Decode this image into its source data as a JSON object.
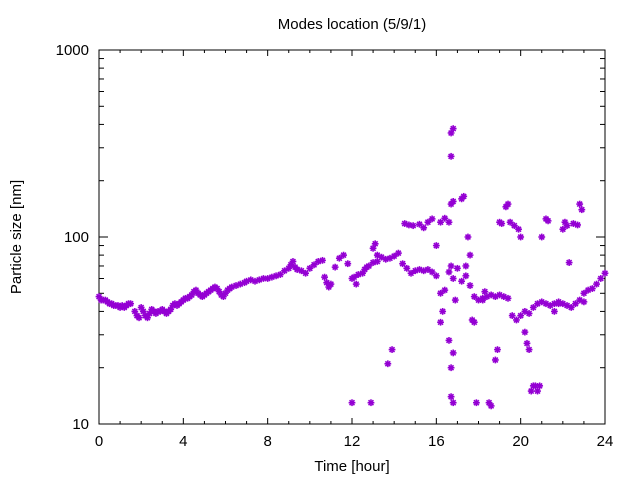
{
  "chart_data": {
    "type": "scatter",
    "title": "Modes location (5/9/1)",
    "xlabel": "Time [hour]",
    "ylabel": "Particle size [nm]",
    "xlim": [
      0,
      24
    ],
    "ylim": [
      10,
      1000
    ],
    "yscale": "log",
    "x_ticks": [
      "0",
      "4",
      "8",
      "12",
      "16",
      "20",
      "24"
    ],
    "y_ticks": [
      "10",
      "100",
      "1000"
    ],
    "marker": "*",
    "color": "#9400d3",
    "grid": false,
    "points": [
      [
        0.0,
        48
      ],
      [
        0.1,
        46
      ],
      [
        0.2,
        46
      ],
      [
        0.3,
        46
      ],
      [
        0.4,
        45
      ],
      [
        0.5,
        44
      ],
      [
        0.6,
        44
      ],
      [
        0.7,
        43
      ],
      [
        0.8,
        43
      ],
      [
        0.9,
        43
      ],
      [
        1.0,
        42
      ],
      [
        1.1,
        43
      ],
      [
        1.2,
        42
      ],
      [
        1.3,
        43
      ],
      [
        1.4,
        44
      ],
      [
        1.5,
        44
      ],
      [
        1.7,
        40
      ],
      [
        1.8,
        38
      ],
      [
        1.9,
        37
      ],
      [
        2.0,
        42
      ],
      [
        2.1,
        40
      ],
      [
        2.2,
        38
      ],
      [
        2.3,
        37
      ],
      [
        2.4,
        39
      ],
      [
        2.5,
        41
      ],
      [
        2.6,
        40
      ],
      [
        2.7,
        39
      ],
      [
        2.8,
        40
      ],
      [
        2.9,
        40
      ],
      [
        3.0,
        41
      ],
      [
        3.1,
        40
      ],
      [
        3.2,
        39
      ],
      [
        3.3,
        40
      ],
      [
        3.4,
        41
      ],
      [
        3.5,
        43
      ],
      [
        3.6,
        44
      ],
      [
        3.7,
        43
      ],
      [
        3.8,
        44
      ],
      [
        3.9,
        45
      ],
      [
        4.0,
        46
      ],
      [
        4.1,
        47
      ],
      [
        4.2,
        47
      ],
      [
        4.3,
        48
      ],
      [
        4.4,
        49
      ],
      [
        4.5,
        51
      ],
      [
        4.6,
        52
      ],
      [
        4.7,
        50
      ],
      [
        4.8,
        49
      ],
      [
        4.9,
        48
      ],
      [
        5.0,
        49
      ],
      [
        5.1,
        50
      ],
      [
        5.2,
        51
      ],
      [
        5.3,
        52
      ],
      [
        5.4,
        53
      ],
      [
        5.5,
        54
      ],
      [
        5.6,
        53
      ],
      [
        5.7,
        51
      ],
      [
        5.8,
        49
      ],
      [
        5.9,
        48
      ],
      [
        6.0,
        50
      ],
      [
        6.1,
        52
      ],
      [
        6.2,
        53
      ],
      [
        6.3,
        54
      ],
      [
        6.5,
        55
      ],
      [
        6.7,
        56
      ],
      [
        6.9,
        57
      ],
      [
        7.0,
        58
      ],
      [
        7.2,
        59
      ],
      [
        7.4,
        58
      ],
      [
        7.6,
        59
      ],
      [
        7.8,
        60
      ],
      [
        8.0,
        60
      ],
      [
        8.2,
        61
      ],
      [
        8.4,
        62
      ],
      [
        8.6,
        63
      ],
      [
        8.8,
        66
      ],
      [
        9.0,
        68
      ],
      [
        9.1,
        71
      ],
      [
        9.2,
        74
      ],
      [
        9.3,
        69
      ],
      [
        9.4,
        67
      ],
      [
        9.6,
        66
      ],
      [
        9.8,
        64
      ],
      [
        10.0,
        68
      ],
      [
        10.2,
        71
      ],
      [
        10.4,
        74
      ],
      [
        10.6,
        75
      ],
      [
        10.7,
        61
      ],
      [
        10.8,
        57
      ],
      [
        10.9,
        54
      ],
      [
        11.0,
        56
      ],
      [
        11.2,
        69
      ],
      [
        11.4,
        77
      ],
      [
        11.6,
        80
      ],
      [
        11.8,
        72
      ],
      [
        12.0,
        60
      ],
      [
        12.1,
        61
      ],
      [
        12.2,
        56
      ],
      [
        12.3,
        63
      ],
      [
        12.5,
        64
      ],
      [
        12.6,
        67
      ],
      [
        12.7,
        69
      ],
      [
        12.8,
        70
      ],
      [
        13.0,
        73
      ],
      [
        13.2,
        80
      ],
      [
        13.4,
        78
      ],
      [
        13.6,
        76
      ],
      [
        13.8,
        77
      ],
      [
        14.0,
        79
      ],
      [
        14.2,
        82
      ],
      [
        14.4,
        72
      ],
      [
        14.6,
        68
      ],
      [
        14.8,
        64
      ],
      [
        15.0,
        66
      ],
      [
        15.2,
        67
      ],
      [
        15.4,
        66
      ],
      [
        15.6,
        67
      ],
      [
        15.8,
        65
      ],
      [
        16.0,
        62
      ],
      [
        16.2,
        50
      ],
      [
        16.4,
        52
      ],
      [
        16.6,
        65
      ],
      [
        16.7,
        70
      ],
      [
        16.8,
        60
      ],
      [
        17.0,
        68
      ],
      [
        17.2,
        58
      ],
      [
        17.4,
        62
      ],
      [
        17.6,
        55
      ],
      [
        17.8,
        48
      ],
      [
        18.0,
        46
      ],
      [
        18.2,
        47
      ],
      [
        18.4,
        48
      ],
      [
        18.6,
        49
      ],
      [
        18.8,
        48
      ],
      [
        19.0,
        49
      ],
      [
        19.2,
        48
      ],
      [
        19.4,
        47
      ],
      [
        19.6,
        38
      ],
      [
        19.8,
        36
      ],
      [
        20.0,
        38
      ],
      [
        20.2,
        40
      ],
      [
        20.4,
        39
      ],
      [
        20.6,
        42
      ],
      [
        20.8,
        44
      ],
      [
        21.0,
        45
      ],
      [
        21.2,
        44
      ],
      [
        21.4,
        43
      ],
      [
        21.6,
        44
      ],
      [
        21.8,
        45
      ],
      [
        22.0,
        44
      ],
      [
        22.2,
        43
      ],
      [
        22.4,
        42
      ],
      [
        22.6,
        44
      ],
      [
        22.8,
        46
      ],
      [
        23.0,
        50
      ],
      [
        23.2,
        52
      ],
      [
        23.4,
        53
      ],
      [
        23.6,
        56
      ],
      [
        23.8,
        60
      ],
      [
        24.0,
        64
      ],
      [
        12.0,
        13
      ],
      [
        12.9,
        13
      ],
      [
        13.0,
        87
      ],
      [
        13.1,
        92
      ],
      [
        13.2,
        74
      ],
      [
        13.7,
        21
      ],
      [
        13.9,
        25
      ],
      [
        14.5,
        118
      ],
      [
        14.7,
        116
      ],
      [
        14.9,
        115
      ],
      [
        15.2,
        117
      ],
      [
        15.4,
        112
      ],
      [
        15.6,
        120
      ],
      [
        15.8,
        125
      ],
      [
        16.0,
        90
      ],
      [
        16.2,
        120
      ],
      [
        16.4,
        126
      ],
      [
        16.6,
        120
      ],
      [
        16.7,
        150
      ],
      [
        16.8,
        155
      ],
      [
        16.7,
        270
      ],
      [
        16.7,
        360
      ],
      [
        16.8,
        380
      ],
      [
        16.2,
        35
      ],
      [
        16.3,
        40
      ],
      [
        16.6,
        28
      ],
      [
        16.7,
        20
      ],
      [
        16.8,
        24
      ],
      [
        16.7,
        14
      ],
      [
        16.8,
        13
      ],
      [
        16.9,
        46
      ],
      [
        17.2,
        160
      ],
      [
        17.3,
        165
      ],
      [
        17.4,
        70
      ],
      [
        17.5,
        100
      ],
      [
        17.6,
        80
      ],
      [
        17.7,
        36
      ],
      [
        17.8,
        35
      ],
      [
        17.9,
        13
      ],
      [
        18.2,
        46
      ],
      [
        18.3,
        51
      ],
      [
        18.5,
        13
      ],
      [
        18.6,
        12.5
      ],
      [
        18.8,
        22
      ],
      [
        18.9,
        25
      ],
      [
        19.0,
        120
      ],
      [
        19.1,
        118
      ],
      [
        19.3,
        145
      ],
      [
        19.4,
        150
      ],
      [
        19.5,
        120
      ],
      [
        19.7,
        115
      ],
      [
        19.9,
        110
      ],
      [
        20.0,
        100
      ],
      [
        20.2,
        31
      ],
      [
        20.3,
        27
      ],
      [
        20.4,
        25
      ],
      [
        20.5,
        15
      ],
      [
        20.6,
        16
      ],
      [
        20.7,
        16
      ],
      [
        20.8,
        15
      ],
      [
        20.9,
        16
      ],
      [
        21.0,
        100
      ],
      [
        21.2,
        125
      ],
      [
        21.3,
        122
      ],
      [
        21.6,
        40
      ],
      [
        21.8,
        44
      ],
      [
        22.0,
        110
      ],
      [
        22.1,
        120
      ],
      [
        22.2,
        115
      ],
      [
        22.3,
        73
      ],
      [
        22.5,
        118
      ],
      [
        22.7,
        116
      ],
      [
        22.8,
        150
      ],
      [
        22.9,
        140
      ],
      [
        23.0,
        45
      ]
    ]
  }
}
